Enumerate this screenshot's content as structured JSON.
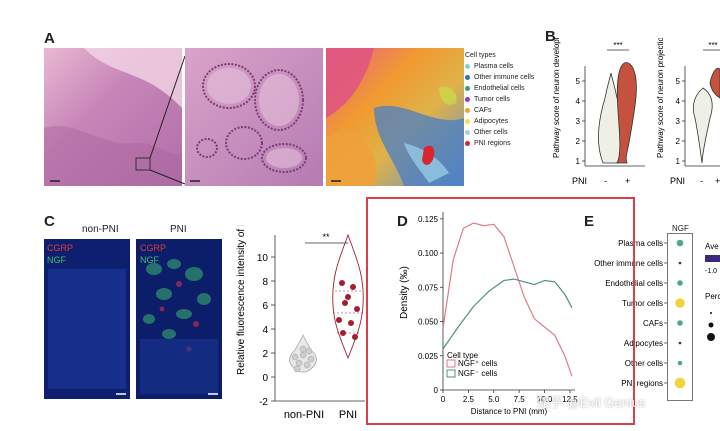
{
  "panels": {
    "a": "A",
    "b": "B",
    "c": "C",
    "d": "D",
    "e": "E"
  },
  "panel_a": {
    "legend_title": "Cell types",
    "legend": [
      {
        "label": "Plasma cells",
        "color": "#7fd1cf"
      },
      {
        "label": "Other immune cells",
        "color": "#2c6fbd"
      },
      {
        "label": "Endothelial cells",
        "color": "#2e9e8a"
      },
      {
        "label": "Tumor cells",
        "color": "#8e3fb0"
      },
      {
        "label": "CAFs",
        "color": "#f2a31c"
      },
      {
        "label": "Adipocytes",
        "color": "#f5e04a"
      },
      {
        "label": "Other cells",
        "color": "#a8cfe0"
      },
      {
        "label": "PNI regions",
        "color": "#d6272e"
      }
    ]
  },
  "panel_b": {
    "ylabel1": "Pathway score of neuron development",
    "ylabel2": "Pathway score of neuron projection",
    "sig": "***",
    "xlabel": "PNI",
    "ticks": [
      "-",
      "+"
    ],
    "yticks": [
      "1",
      "2",
      "3",
      "4",
      "5"
    ]
  },
  "panel_c": {
    "title_left": "non-PNI",
    "title_right": "PNI",
    "label_cgrp": "CGRP",
    "label_ngf": "NGF",
    "ylabel": "Relative fluorescence intensity of NGF",
    "sig": "**",
    "yticks": [
      "-2",
      "0",
      "2",
      "4",
      "6",
      "8",
      "10"
    ],
    "xcats": [
      "non-PNI",
      "PNI"
    ]
  },
  "chart_data": [
    {
      "type": "line",
      "panel": "D",
      "xlabel": "Distance to PNI (mm)",
      "ylabel": "Density (‰)",
      "xticks": [
        "0",
        "2.5",
        "5.0",
        "7.5",
        "10.0",
        "12.5"
      ],
      "yticks": [
        "0",
        "0.025",
        "0.050",
        "0.075",
        "0.100",
        "0.125"
      ],
      "xlim": [
        0,
        13
      ],
      "ylim": [
        0,
        0.13
      ],
      "legend_title": "Cell type",
      "series": [
        {
          "name": "NGF⁺ cells",
          "color": "#e07a86",
          "x": [
            0,
            1.0,
            2.0,
            3.0,
            4.0,
            5.0,
            6.0,
            7.0,
            8.0,
            9.0,
            10.0,
            11.0,
            12.0,
            12.7
          ],
          "y": [
            0.045,
            0.095,
            0.118,
            0.122,
            0.12,
            0.121,
            0.112,
            0.09,
            0.068,
            0.052,
            0.046,
            0.04,
            0.025,
            0.01
          ]
        },
        {
          "name": "NGF⁻ cells",
          "color": "#4d8f87",
          "x": [
            0,
            1.5,
            3.0,
            4.5,
            6.0,
            7.0,
            8.0,
            9.0,
            10.0,
            11.0,
            12.0,
            12.7
          ],
          "y": [
            0.03,
            0.046,
            0.061,
            0.072,
            0.08,
            0.081,
            0.079,
            0.077,
            0.08,
            0.079,
            0.07,
            0.06
          ]
        }
      ]
    },
    {
      "type": "scatter",
      "panel": "E",
      "title": "NGF",
      "categories": [
        "Plasma cells",
        "Other immune cells",
        "Endothelial cells",
        "Tumor cells",
        "CAFs",
        "Adipocytes",
        "Other cells",
        "PNI regions"
      ],
      "values": [
        0.6,
        -0.2,
        0.5,
        1.0,
        0.4,
        -0.3,
        0.3,
        1.0
      ],
      "sizes": [
        0.5,
        0.1,
        0.4,
        0.8,
        0.4,
        0.1,
        0.3,
        0.9
      ],
      "legend_avg": "Ave",
      "legend_avg_tick": "-1.0",
      "legend_pct": "Perc"
    }
  ],
  "watermark": "知乎 @Evil Genius"
}
